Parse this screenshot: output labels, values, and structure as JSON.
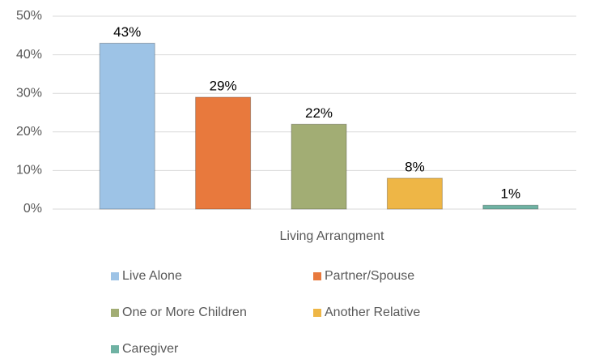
{
  "chart_data": {
    "type": "bar",
    "x_label": "Living Arrangment",
    "categories": [
      "Living Arrangment"
    ],
    "series": [
      {
        "name": "Live Alone",
        "color": "#9dc3e6",
        "values": [
          43
        ],
        "value_labels": [
          "43%"
        ]
      },
      {
        "name": "Partner/Spouse",
        "color": "#e8793d",
        "values": [
          29
        ],
        "value_labels": [
          "29%"
        ]
      },
      {
        "name": "One or More Children",
        "color": "#a2ad74",
        "values": [
          22
        ],
        "value_labels": [
          "22%"
        ]
      },
      {
        "name": "Another Relative",
        "color": "#eeb646",
        "values": [
          8
        ],
        "value_labels": [
          "8%"
        ]
      },
      {
        "name": "Caregiver",
        "color": "#6fb2a3",
        "values": [
          1
        ],
        "value_labels": [
          "1%"
        ]
      }
    ],
    "ylim": [
      0,
      50
    ],
    "yticks": [
      {
        "value": 0,
        "label": "0%"
      },
      {
        "value": 10,
        "label": "10%"
      },
      {
        "value": 20,
        "label": "20%"
      },
      {
        "value": 30,
        "label": "30%"
      },
      {
        "value": 40,
        "label": "40%"
      },
      {
        "value": 50,
        "label": "50%"
      }
    ],
    "grid": true,
    "legend": "bottom"
  }
}
